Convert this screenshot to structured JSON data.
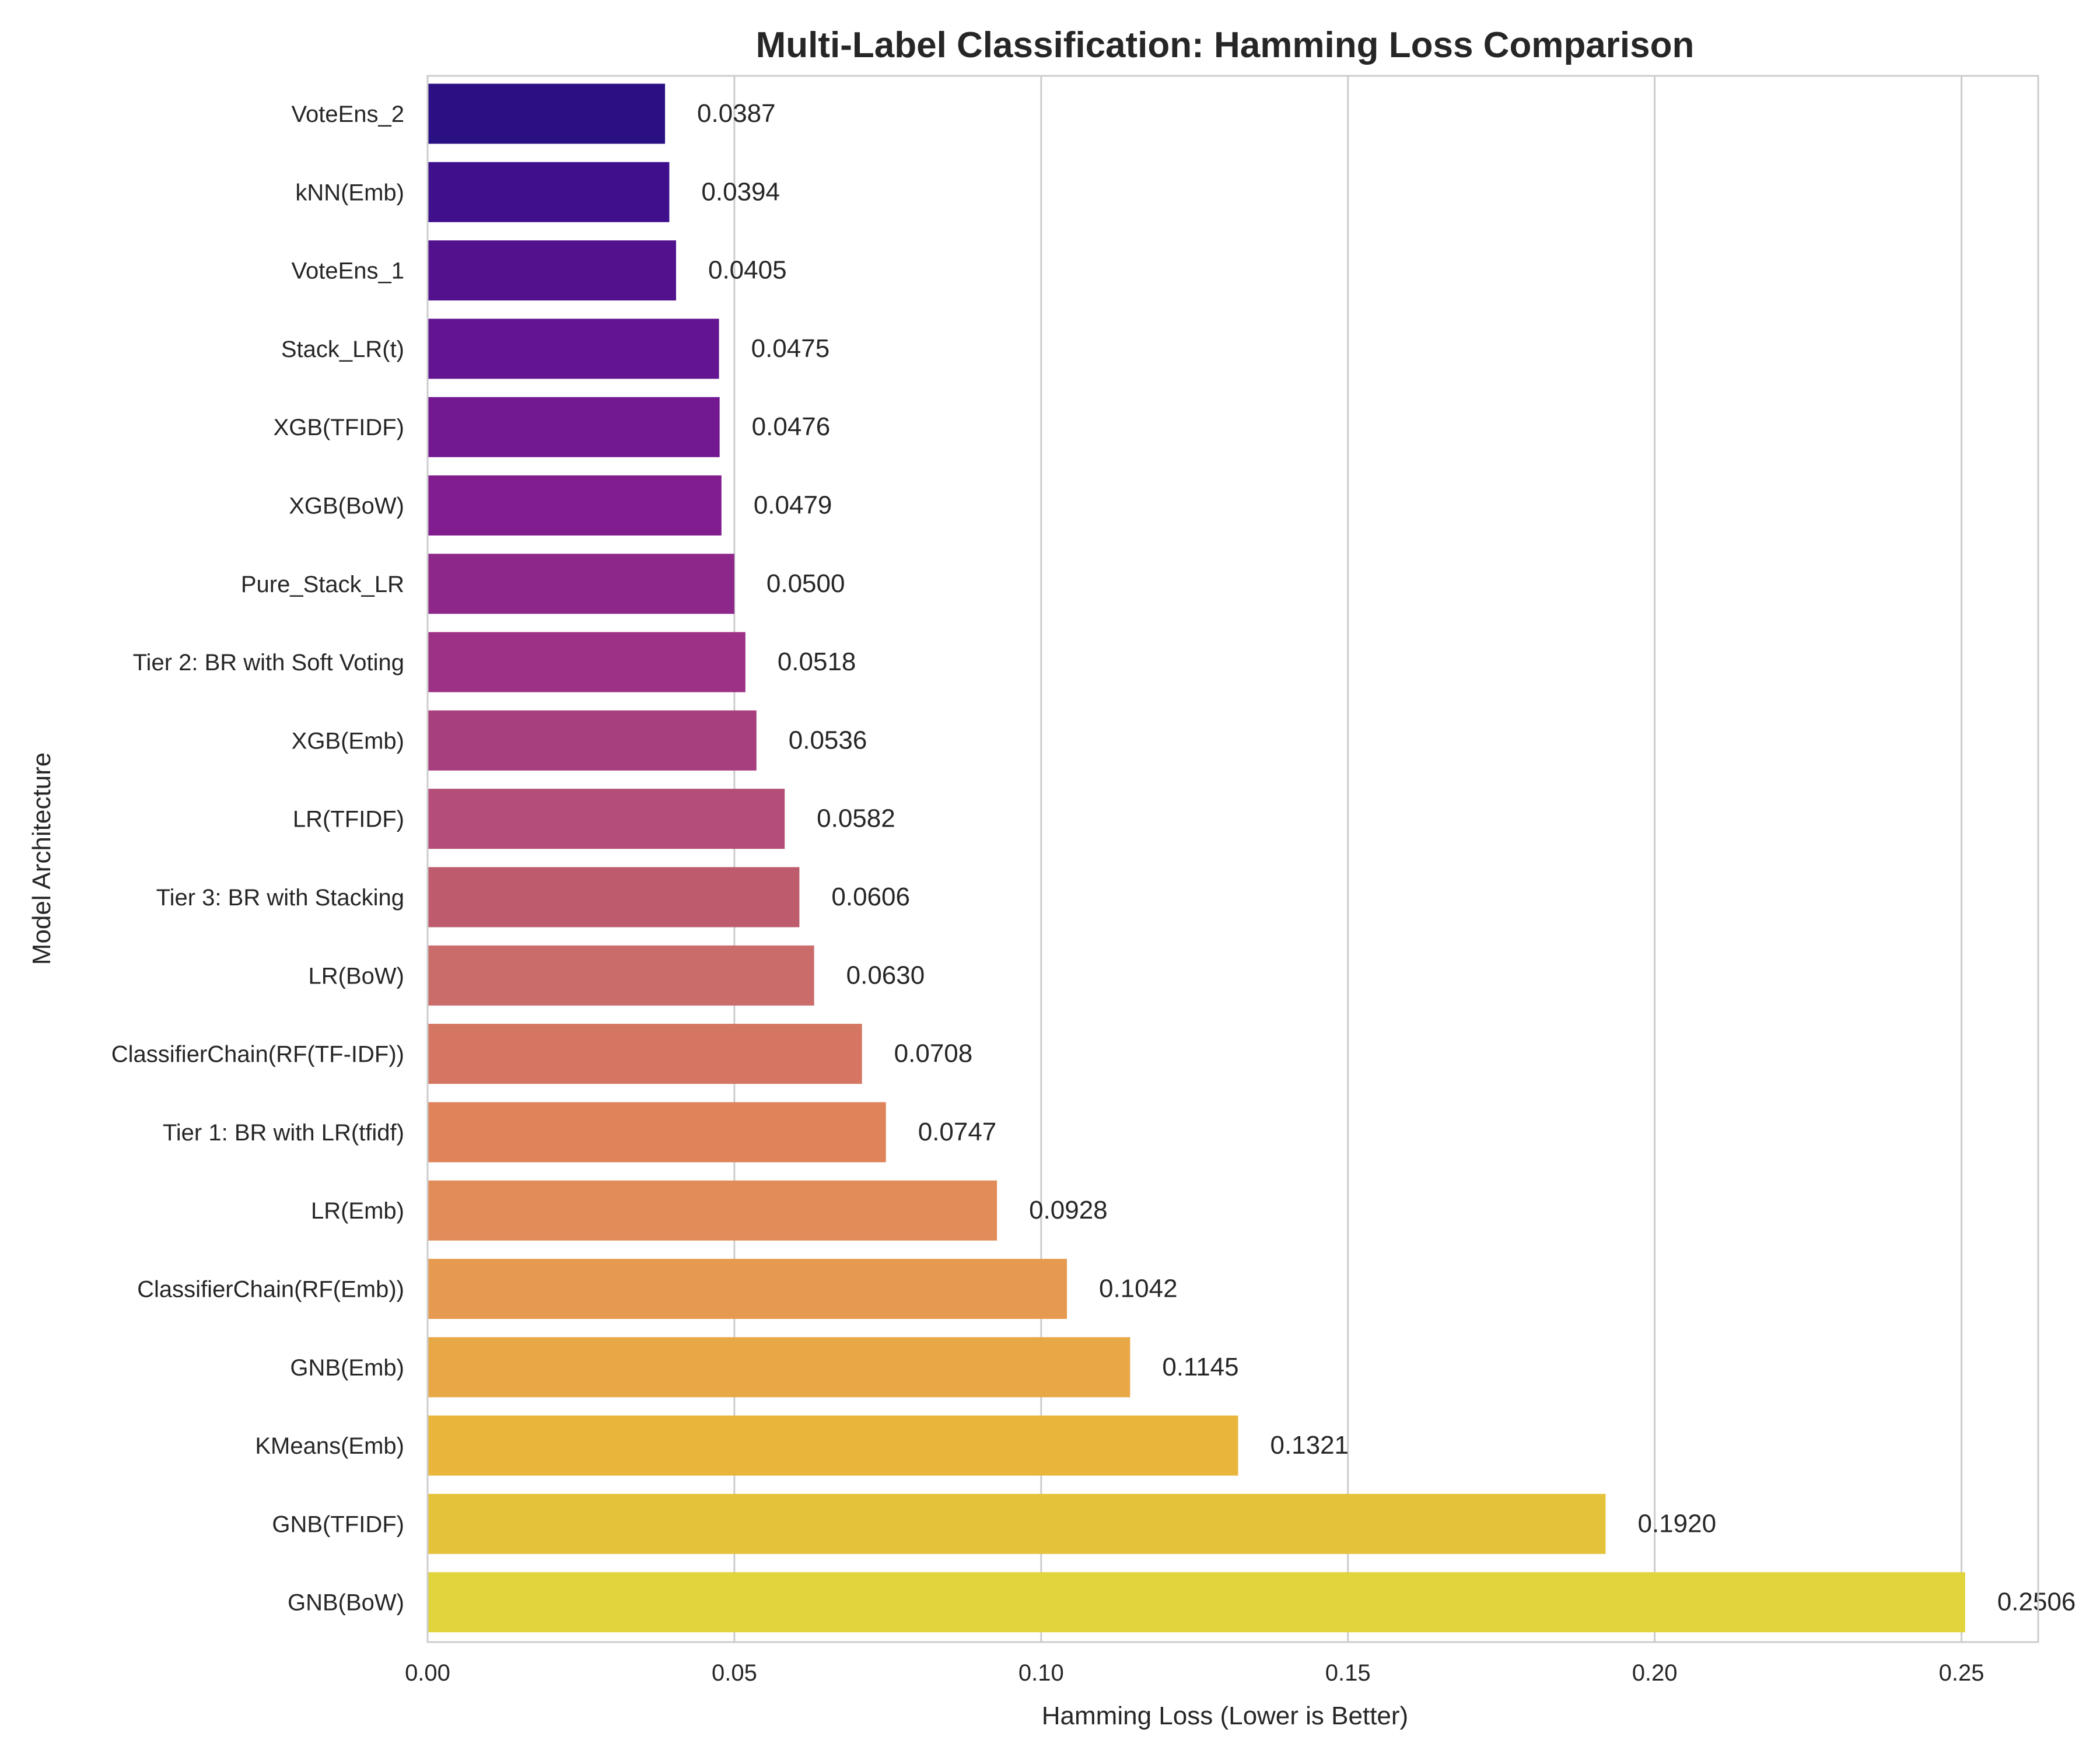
{
  "chart_data": {
    "type": "bar",
    "orientation": "horizontal",
    "title": "Multi-Label Classification: Hamming Loss Comparison",
    "xlabel": "Hamming Loss (Lower is Better)",
    "ylabel": "Model Architecture",
    "xlim": [
      0,
      0.2625
    ],
    "xticks": [
      0.0,
      0.05,
      0.1,
      0.15,
      0.2,
      0.25
    ],
    "xtick_labels": [
      "0.00",
      "0.05",
      "0.10",
      "0.15",
      "0.20",
      "0.25"
    ],
    "grid": "vertical",
    "colormap": "plasma",
    "categories": [
      "VoteEns_2",
      "kNN(Emb)",
      "VoteEns_1",
      "Stack_LR(t)",
      "XGB(TFIDF)",
      "XGB(BoW)",
      "Pure_Stack_LR",
      "Tier 2: BR with Soft Voting",
      "XGB(Emb)",
      "LR(TFIDF)",
      "Tier 3: BR with Stacking",
      "LR(BoW)",
      "ClassifierChain(RF(TF-IDF))",
      "Tier 1: BR with LR(tfidf)",
      "LR(Emb)",
      "ClassifierChain(RF(Emb))",
      "GNB(Emb)",
      "KMeans(Emb)",
      "GNB(TFIDF)",
      "GNB(BoW)"
    ],
    "values": [
      0.0387,
      0.0394,
      0.0405,
      0.0475,
      0.0476,
      0.0479,
      0.05,
      0.0518,
      0.0536,
      0.0582,
      0.0606,
      0.063,
      0.0708,
      0.0747,
      0.0928,
      0.1042,
      0.1145,
      0.1321,
      0.192,
      0.2506
    ],
    "value_labels": [
      "0.0387",
      "0.0394",
      "0.0405",
      "0.0475",
      "0.0476",
      "0.0479",
      "0.0500",
      "0.0518",
      "0.0536",
      "0.0582",
      "0.0606",
      "0.0630",
      "0.0708",
      "0.0747",
      "0.0928",
      "0.1042",
      "0.1145",
      "0.1321",
      "0.1920",
      "0.2506"
    ],
    "colors": [
      "#2a1082",
      "#40108c",
      "#52128e",
      "#631491",
      "#721891",
      "#811d8f",
      "#8e278a",
      "#9c3185",
      "#a73e7d",
      "#b44d77",
      "#be5c6d",
      "#c96c6a",
      "#d47661",
      "#df835a",
      "#e28c5a",
      "#e69a4f",
      "#e7a845",
      "#e9b53a",
      "#e4c33a",
      "#e1d43c"
    ]
  }
}
